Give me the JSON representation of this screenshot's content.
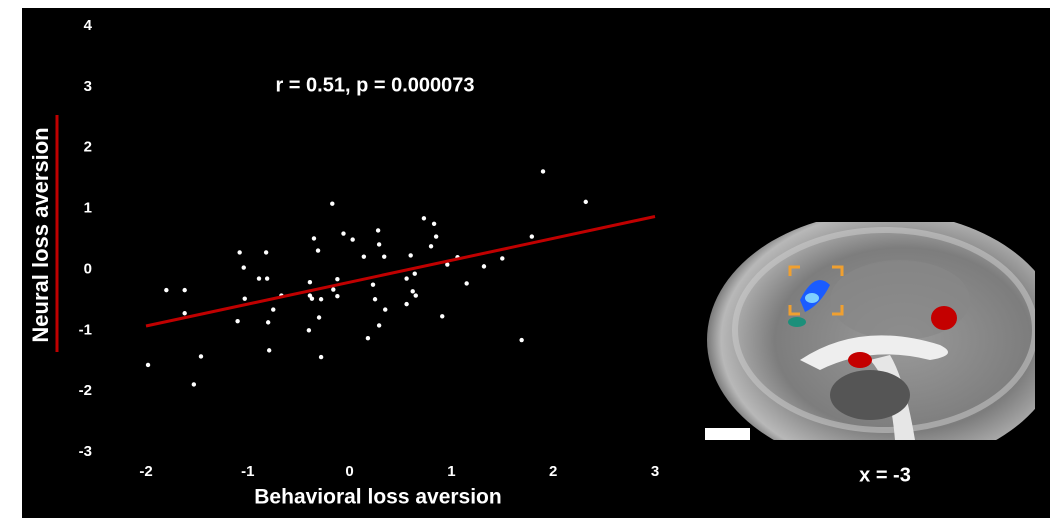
{
  "chart_data": {
    "type": "scatter",
    "annotation": "r = 0.51, p = 0.000073",
    "xlabel": "Behavioral loss aversion",
    "ylabel": "Neural loss aversion",
    "image_label": "x = -3",
    "xlim": [
      -2,
      3
    ],
    "ylim": [
      -3,
      4
    ],
    "xticks": [
      -2,
      -1,
      0,
      1,
      2,
      3
    ],
    "yticks": [
      -3,
      -2,
      -1,
      0,
      1,
      2,
      3,
      4
    ],
    "series": [
      {
        "color": "#ffffff",
        "x": [
          -1.98,
          -1.8,
          -1.62,
          -1.62,
          -1.46,
          -1.53,
          -1.08,
          -1.04,
          -1.03,
          -1.1,
          -0.89,
          -0.82,
          -0.81,
          -0.8,
          -0.79,
          -0.75,
          -0.67,
          -0.39,
          -0.39,
          -0.35,
          -0.31,
          -0.37,
          -0.4,
          -0.3,
          -0.28,
          -0.28,
          -0.16,
          -0.17,
          -0.12,
          -0.06,
          0.03,
          -0.12,
          0.14,
          0.18,
          0.23,
          0.25,
          0.28,
          0.29,
          0.29,
          0.34,
          0.35,
          0.56,
          0.56,
          0.6,
          0.62,
          0.64,
          0.65,
          0.73,
          0.8,
          0.83,
          0.85,
          0.91,
          0.96,
          1.06,
          1.15,
          1.32,
          1.5,
          1.69,
          1.79,
          1.9,
          2.32
        ],
        "y": [
          -1.57,
          -0.34,
          -0.34,
          -0.72,
          -1.43,
          -1.89,
          0.28,
          0.03,
          -0.48,
          -0.85,
          -0.15,
          0.28,
          -0.15,
          -0.87,
          -1.33,
          -0.66,
          -0.43,
          -0.21,
          -0.43,
          0.51,
          0.31,
          -0.48,
          -1.0,
          -0.79,
          -1.44,
          -0.49,
          -0.33,
          1.08,
          -0.16,
          0.59,
          0.49,
          -0.44,
          0.21,
          -1.13,
          -0.25,
          -0.49,
          0.64,
          0.41,
          -0.92,
          0.21,
          -0.66,
          -0.15,
          -0.57,
          0.23,
          -0.36,
          -0.07,
          -0.43,
          0.84,
          0.38,
          0.75,
          0.54,
          -0.77,
          0.08,
          0.2,
          -0.23,
          0.05,
          0.18,
          -1.16,
          0.54,
          1.61,
          1.11
        ]
      }
    ],
    "fit": {
      "color": "#c00000",
      "x": [
        -2,
        3
      ],
      "y": [
        -0.93,
        0.87
      ]
    }
  }
}
